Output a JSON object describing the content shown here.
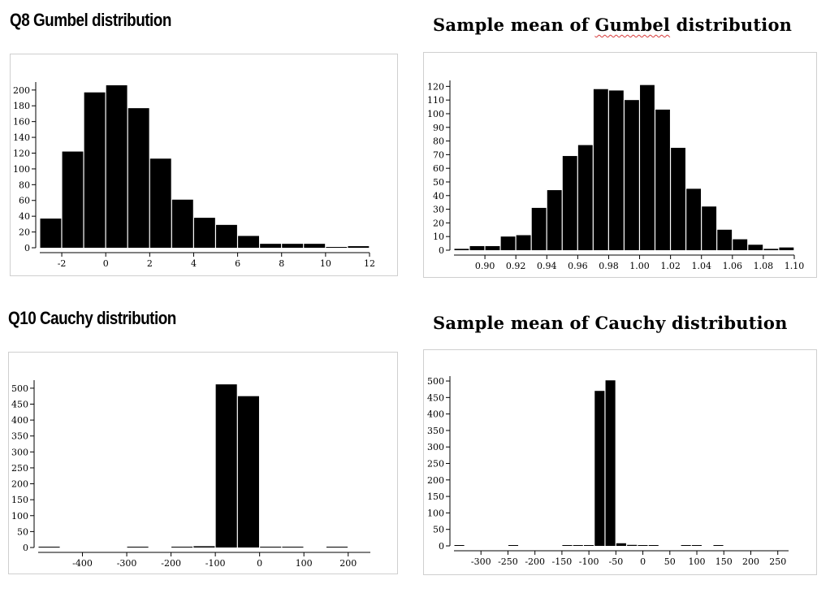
{
  "titles": {
    "gumbel": "Q8 Gumbel distribution",
    "gumbel_mean_pre": "Sample mean of ",
    "gumbel_mean_word": "Gumbel",
    "gumbel_mean_post": " distribution",
    "cauchy": "Q10 Cauchy distribution",
    "cauchy_mean": "Sample mean of Cauchy distribution"
  },
  "chart_data": [
    {
      "id": "gumbel",
      "type": "bar",
      "title": "",
      "xlabel": "",
      "ylabel": "",
      "bin_start": -3,
      "bin_width": 1,
      "values": [
        37,
        122,
        197,
        206,
        177,
        113,
        61,
        38,
        29,
        15,
        5,
        5,
        5,
        1,
        2
      ],
      "xlim": [
        -3,
        12
      ],
      "ylim": [
        0,
        206
      ],
      "xticks": [
        -2,
        0,
        2,
        4,
        6,
        8,
        10,
        12
      ],
      "yticks": [
        0,
        20,
        40,
        60,
        80,
        100,
        120,
        140,
        160,
        180,
        200
      ],
      "xtick_labels": [
        "-2",
        "0",
        "2",
        "4",
        "6",
        "8",
        "10",
        "12"
      ],
      "ytick_labels": [
        "0",
        "20",
        "40",
        "60",
        "80",
        "100",
        "120",
        "140",
        "160",
        "180",
        "200"
      ],
      "grid": false
    },
    {
      "id": "gumbel_mean",
      "type": "bar",
      "title": "",
      "xlabel": "",
      "ylabel": "",
      "bin_start": 0.88,
      "bin_width": 0.01,
      "values": [
        1,
        3,
        3,
        10,
        11,
        31,
        44,
        69,
        77,
        118,
        117,
        110,
        121,
        103,
        75,
        45,
        32,
        15,
        8,
        4,
        1,
        2
      ],
      "xlim": [
        0.88,
        1.1
      ],
      "ylim": [
        0,
        122
      ],
      "xticks": [
        0.9,
        0.92,
        0.94,
        0.96,
        0.98,
        1.0,
        1.02,
        1.04,
        1.06,
        1.08,
        1.1
      ],
      "yticks": [
        0,
        10,
        20,
        30,
        40,
        50,
        60,
        70,
        80,
        90,
        100,
        110,
        120
      ],
      "xtick_labels": [
        "0.90",
        "0.92",
        "0.94",
        "0.96",
        "0.98",
        "1.00",
        "1.02",
        "1.04",
        "1.06",
        "1.08",
        "1.10"
      ],
      "ytick_labels": [
        "0",
        "10",
        "20",
        "30",
        "40",
        "50",
        "60",
        "70",
        "80",
        "90",
        "100",
        "110",
        "120"
      ],
      "grid": false
    },
    {
      "id": "cauchy",
      "type": "bar",
      "title": "",
      "xlabel": "",
      "ylabel": "",
      "bin_start": -500,
      "bin_width": 50,
      "values": [
        1,
        0,
        0,
        0,
        1,
        0,
        1,
        4,
        512,
        475,
        1,
        1,
        0,
        1,
        0
      ],
      "xlim": [
        -500,
        250
      ],
      "ylim": [
        0,
        515
      ],
      "xticks": [
        -400,
        -300,
        -200,
        -100,
        0,
        100,
        200
      ],
      "yticks": [
        0,
        50,
        100,
        150,
        200,
        250,
        300,
        350,
        400,
        450,
        500
      ],
      "xtick_labels": [
        "-400",
        "-300",
        "-200",
        "-100",
        "0",
        "100",
        "200"
      ],
      "ytick_labels": [
        "0",
        "50",
        "100",
        "150",
        "200",
        "250",
        "300",
        "350",
        "400",
        "450",
        "500"
      ],
      "grid": false
    },
    {
      "id": "cauchy_mean",
      "type": "bar",
      "title": "",
      "xlabel": "",
      "ylabel": "",
      "bin_start": -350,
      "bin_width": 20,
      "values": [
        1,
        0,
        0,
        0,
        0,
        1,
        0,
        0,
        0,
        0,
        1,
        2,
        2,
        470,
        502,
        8,
        3,
        1,
        1,
        0,
        0,
        1,
        1,
        0,
        1,
        0,
        0,
        0,
        0,
        0
      ],
      "xlim": [
        -350,
        270
      ],
      "ylim": [
        0,
        505
      ],
      "xticks": [
        -300,
        -250,
        -200,
        -150,
        -100,
        -50,
        0,
        50,
        100,
        150,
        200,
        250
      ],
      "yticks": [
        0,
        50,
        100,
        150,
        200,
        250,
        300,
        350,
        400,
        450,
        500
      ],
      "xtick_labels": [
        "-300",
        "-250",
        "-200",
        "-150",
        "-100",
        "-50",
        "0",
        "50",
        "100",
        "150",
        "200",
        "250"
      ],
      "ytick_labels": [
        "0",
        "50",
        "100",
        "150",
        "200",
        "250",
        "300",
        "350",
        "400",
        "450",
        "500"
      ],
      "grid": false
    }
  ]
}
